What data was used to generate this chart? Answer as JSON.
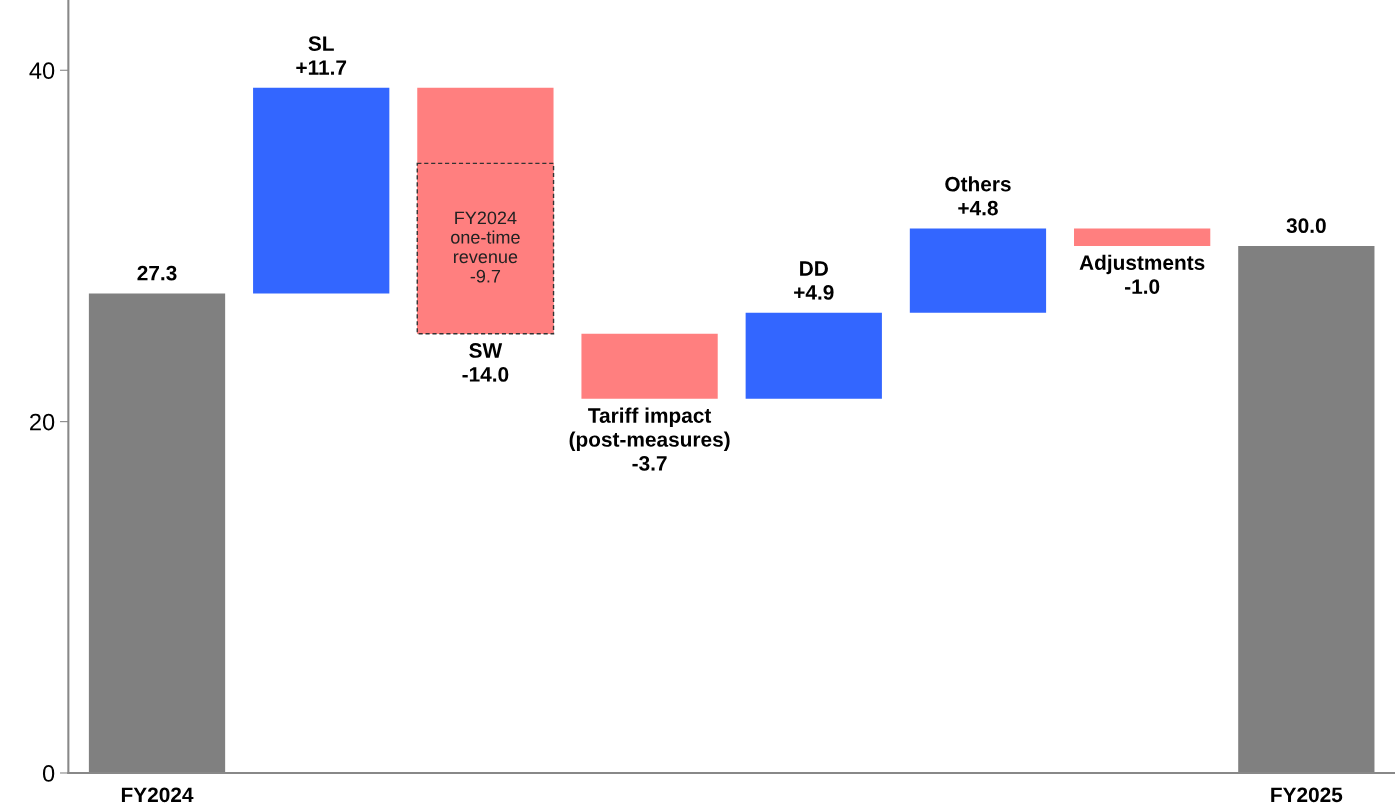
{
  "chart_data": {
    "type": "bar",
    "categories": [
      "FY2024",
      null,
      null,
      null,
      null,
      null,
      null,
      "FY2025"
    ],
    "series": [
      {
        "values": [
          27.3,
          11.7,
          -14.0,
          -3.7,
          4.9,
          4.8,
          -1.0,
          30.0
        ],
        "base": [
          0,
          27.3,
          39.0,
          25.0,
          21.3,
          26.2,
          31.0,
          0
        ],
        "colors": [
          "#808080",
          "#3366ff",
          "#ff7f7f",
          "#ff7f7f",
          "#3366ff",
          "#3366ff",
          "#ff7f7f",
          "#808080"
        ],
        "value_labels": [
          "27.3",
          "SL\n+11.7",
          "SW\n-14.0",
          "Tariff impact\n(post-measures)\n-3.7",
          "DD\n+4.9",
          "Others\n+4.8",
          "Adjustments\n-1.0",
          "30.0"
        ]
      },
      {
        "values": [
          null,
          null,
          -9.7,
          null,
          null,
          null,
          null,
          null
        ],
        "base": [
          null,
          null,
          34.7,
          null,
          null,
          null,
          null,
          null
        ],
        "color": "#ff7f7f",
        "line_style": "dashed",
        "value_labels": [
          null,
          null,
          "FY2024\none-time\nrevenue\n-9.7",
          null,
          null,
          null,
          null,
          null
        ]
      }
    ],
    "ylim": [
      0,
      44
    ],
    "yticks": [
      0,
      20,
      40
    ]
  }
}
